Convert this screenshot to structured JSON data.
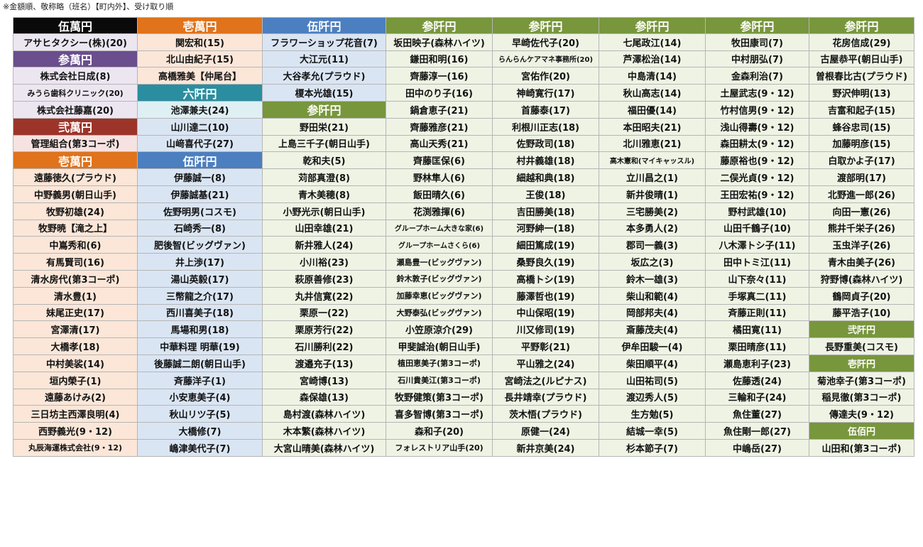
{
  "note": "※金額順、敬称略（班名）【町内外】、受け取り順",
  "colors": {
    "header": {
      "black": "#0a0a0a",
      "orange": "#e0731b",
      "blue": "#4c7fc0",
      "green": "#78963c",
      "purple": "#6a4e8d",
      "teal": "#2a8ea0",
      "darkred": "#9c3429"
    },
    "bg": {
      "peach": "#fbe6d8",
      "blue": "#dae5f3",
      "green": "#eef3e4",
      "lavender": "#ece6f1",
      "lightteal": "#dff0f4",
      "pink": "#f6e3e1",
      "white": "#ffffff"
    }
  },
  "columns": [
    {
      "cells": [
        {
          "t": "伍萬円",
          "h": "black"
        },
        {
          "t": "アサヒタクシー(株)(20)",
          "bg": "lavender"
        },
        {
          "t": "参萬円",
          "h": "purple"
        },
        {
          "t": "株式会社日成(8)",
          "bg": "lavender"
        },
        {
          "t": "みうら歯科クリニック(20)",
          "bg": "lavender",
          "fs": "sm"
        },
        {
          "t": "株式会社藤嘉(20)",
          "bg": "lavender"
        },
        {
          "t": "弐萬円",
          "h": "darkred"
        },
        {
          "t": "管理組合(第3コーポ)",
          "bg": "pink"
        },
        {
          "t": "壱萬円",
          "h": "orange"
        },
        {
          "t": "遠藤徳久(プラウド)",
          "bg": "peach"
        },
        {
          "t": "中野義男(朝日山手)",
          "bg": "peach"
        },
        {
          "t": "牧野初雄(24)",
          "bg": "peach"
        },
        {
          "t": "牧野暁【滝之上】",
          "bg": "peach"
        },
        {
          "t": "中嶌秀和(6)",
          "bg": "peach"
        },
        {
          "t": "有馬賢司(16)",
          "bg": "peach"
        },
        {
          "t": "清水房代(第3コーポ)",
          "bg": "peach"
        },
        {
          "t": "清水豊(1)",
          "bg": "peach"
        },
        {
          "t": "妹尾正史(17)",
          "bg": "peach"
        },
        {
          "t": "宮澤清(17)",
          "bg": "peach"
        },
        {
          "t": "大橋孝(18)",
          "bg": "peach"
        },
        {
          "t": "中村美裟(14)",
          "bg": "peach"
        },
        {
          "t": "垣内榮子(1)",
          "bg": "peach"
        },
        {
          "t": "遠藤あけみ(2)",
          "bg": "peach"
        },
        {
          "t": "三日坊主西澤良明(4)",
          "bg": "peach"
        },
        {
          "t": "西野義光(9・12)",
          "bg": "peach"
        },
        {
          "t": "丸辰海運株式会社(9・12)",
          "bg": "peach",
          "fs": "sm"
        }
      ]
    },
    {
      "cells": [
        {
          "t": "壱萬円",
          "h": "orange"
        },
        {
          "t": "関宏和(15)",
          "bg": "peach"
        },
        {
          "t": "北山由紀子(15)",
          "bg": "peach"
        },
        {
          "t": "高橋雅美【仲尾台】",
          "bg": "peach"
        },
        {
          "t": "六阡円",
          "h": "teal"
        },
        {
          "t": "池澤兼夫(24)",
          "bg": "lightteal"
        },
        {
          "t": "山川達二(10)",
          "bg": "blue"
        },
        {
          "t": "山﨑喜代子(27)",
          "bg": "blue"
        },
        {
          "t": "伍阡円",
          "h": "blue"
        },
        {
          "t": "伊藤誠一(8)",
          "bg": "blue"
        },
        {
          "t": "伊藤誠基(21)",
          "bg": "blue"
        },
        {
          "t": "佐野明男(コスモ)",
          "bg": "blue"
        },
        {
          "t": "石崎秀一(8)",
          "bg": "blue"
        },
        {
          "t": "肥後智(ビッグヴァン)",
          "bg": "blue"
        },
        {
          "t": "井上渉(17)",
          "bg": "blue"
        },
        {
          "t": "湯山英毅(17)",
          "bg": "blue"
        },
        {
          "t": "三幣龍之介(17)",
          "bg": "blue"
        },
        {
          "t": "西川喜美子(18)",
          "bg": "blue"
        },
        {
          "t": "馬場和男(18)",
          "bg": "blue"
        },
        {
          "t": "中華料理 明華(19)",
          "bg": "blue"
        },
        {
          "t": "後藤誠二朗(朝日山手)",
          "bg": "blue"
        },
        {
          "t": "斉藤洋子(1)",
          "bg": "blue"
        },
        {
          "t": "小安恵美子(4)",
          "bg": "blue"
        },
        {
          "t": "秋山リツ子(5)",
          "bg": "blue"
        },
        {
          "t": "大橋修(7)",
          "bg": "blue"
        },
        {
          "t": "嶋津美代子(7)",
          "bg": "blue"
        }
      ]
    },
    {
      "cells": [
        {
          "t": "伍阡円",
          "h": "blue"
        },
        {
          "t": "フラワーショップ花音(7)",
          "bg": "blue"
        },
        {
          "t": "大江元(11)",
          "bg": "blue"
        },
        {
          "t": "大谷孝允(プラウド)",
          "bg": "blue"
        },
        {
          "t": "榎本光雄(15)",
          "bg": "blue"
        },
        {
          "t": "参阡円",
          "h": "green"
        },
        {
          "t": "野田栄(21)",
          "bg": "green"
        },
        {
          "t": "上島三千子(朝日山手)",
          "bg": "green"
        },
        {
          "t": "乾和夫(5)",
          "bg": "green"
        },
        {
          "t": "苅部真澄(8)",
          "bg": "green"
        },
        {
          "t": "青木美穂(8)",
          "bg": "green"
        },
        {
          "t": "小野光示(朝日山手)",
          "bg": "green"
        },
        {
          "t": "山田幸雄(21)",
          "bg": "green"
        },
        {
          "t": "新井雅人(24)",
          "bg": "green"
        },
        {
          "t": "小川裕(23)",
          "bg": "green"
        },
        {
          "t": "萩原善修(23)",
          "bg": "green"
        },
        {
          "t": "丸井信寛(22)",
          "bg": "green"
        },
        {
          "t": "栗原一(22)",
          "bg": "green"
        },
        {
          "t": "栗原芳行(22)",
          "bg": "green"
        },
        {
          "t": "石川勝利(22)",
          "bg": "green"
        },
        {
          "t": "渡邉充子(13)",
          "bg": "green"
        },
        {
          "t": "宮崎博(13)",
          "bg": "green"
        },
        {
          "t": "森保雄(13)",
          "bg": "green"
        },
        {
          "t": "島村渡(森林ハイツ)",
          "bg": "green"
        },
        {
          "t": "木本繁(森林ハイツ)",
          "bg": "green"
        },
        {
          "t": "大宮山晴美(森林ハイツ)",
          "bg": "green"
        }
      ]
    },
    {
      "cells": [
        {
          "t": "参阡円",
          "h": "green"
        },
        {
          "t": "坂田映子(森林ハイツ)",
          "bg": "green"
        },
        {
          "t": "鎌田和明(16)",
          "bg": "green"
        },
        {
          "t": "齊藤淳一(16)",
          "bg": "green"
        },
        {
          "t": "田中のり子(16)",
          "bg": "green"
        },
        {
          "t": "鍋倉恵子(21)",
          "bg": "green"
        },
        {
          "t": "齊藤雅彦(21)",
          "bg": "green"
        },
        {
          "t": "高山天秀(21)",
          "bg": "green"
        },
        {
          "t": "齊藤匡保(6)",
          "bg": "green"
        },
        {
          "t": "野林隼人(6)",
          "bg": "green"
        },
        {
          "t": "飯田晴久(6)",
          "bg": "green"
        },
        {
          "t": "花渕雅揮(6)",
          "bg": "green"
        },
        {
          "t": "グループホーム大きな家(6)",
          "bg": "green",
          "fs": "xs"
        },
        {
          "t": "グループホームさくら(6)",
          "bg": "green",
          "fs": "xs"
        },
        {
          "t": "瀬島豊一(ビッグヴァン)",
          "bg": "green",
          "fs": "sm"
        },
        {
          "t": "鈴木敦子(ビッグヴァン)",
          "bg": "green",
          "fs": "sm"
        },
        {
          "t": "加藤幸恵(ビッグヴァン)",
          "bg": "green",
          "fs": "sm"
        },
        {
          "t": "大野泰弘(ビッグヴァン)",
          "bg": "green",
          "fs": "sm"
        },
        {
          "t": "小笠原涼介(29)",
          "bg": "green"
        },
        {
          "t": "甲斐誠治(朝日山手)",
          "bg": "green"
        },
        {
          "t": "植田恵美子(第3コーポ)",
          "bg": "green",
          "fs": "sm"
        },
        {
          "t": "石川貴美江(第3コーポ)",
          "bg": "green",
          "fs": "sm"
        },
        {
          "t": "牧野健策(第3コーポ)",
          "bg": "green"
        },
        {
          "t": "喜多智博(第3コーポ)",
          "bg": "green"
        },
        {
          "t": "森和子(20)",
          "bg": "green"
        },
        {
          "t": "フォレストリア山手(20)",
          "bg": "green",
          "fs": "sm"
        }
      ]
    },
    {
      "cells": [
        {
          "t": "参阡円",
          "h": "green"
        },
        {
          "t": "早崎佐代子(20)",
          "bg": "green"
        },
        {
          "t": "らんらんケアマネ事務所(20)",
          "bg": "green",
          "fs": "xs"
        },
        {
          "t": "宮佑作(20)",
          "bg": "green"
        },
        {
          "t": "神崎寛行(17)",
          "bg": "green"
        },
        {
          "t": "首藤泰(17)",
          "bg": "green"
        },
        {
          "t": "利根川正志(18)",
          "bg": "green"
        },
        {
          "t": "佐野政司(18)",
          "bg": "green"
        },
        {
          "t": "村井義雄(18)",
          "bg": "green"
        },
        {
          "t": "細越和典(18)",
          "bg": "green"
        },
        {
          "t": "王俊(18)",
          "bg": "green"
        },
        {
          "t": "吉田勝美(18)",
          "bg": "green"
        },
        {
          "t": "河野紳一(18)",
          "bg": "green"
        },
        {
          "t": "細田篤成(19)",
          "bg": "green"
        },
        {
          "t": "桑野良久(19)",
          "bg": "green"
        },
        {
          "t": "高橋トシ(19)",
          "bg": "green"
        },
        {
          "t": "藤澤哲也(19)",
          "bg": "green"
        },
        {
          "t": "中山保昭(19)",
          "bg": "green"
        },
        {
          "t": "川又修司(19)",
          "bg": "green"
        },
        {
          "t": "平野彰(21)",
          "bg": "green"
        },
        {
          "t": "平山雅之(24)",
          "bg": "green"
        },
        {
          "t": "宮崎法之(ルピナス)",
          "bg": "green"
        },
        {
          "t": "長井靖幸(プラウド)",
          "bg": "green"
        },
        {
          "t": "茨木悟(プラウド)",
          "bg": "green"
        },
        {
          "t": "原健一(24)",
          "bg": "green"
        },
        {
          "t": "新井京美(24)",
          "bg": "green"
        }
      ]
    },
    {
      "cells": [
        {
          "t": "参阡円",
          "h": "green"
        },
        {
          "t": "七尾政江(14)",
          "bg": "green"
        },
        {
          "t": "芦澤松治(14)",
          "bg": "green"
        },
        {
          "t": "中島清(14)",
          "bg": "green"
        },
        {
          "t": "秋山高志(14)",
          "bg": "green"
        },
        {
          "t": "福田優(14)",
          "bg": "green"
        },
        {
          "t": "本田昭夫(21)",
          "bg": "green"
        },
        {
          "t": "北川雅恵(21)",
          "bg": "green"
        },
        {
          "t": "高木憲和(マイキャッスル)",
          "bg": "green",
          "fs": "xs"
        },
        {
          "t": "立川昌之(1)",
          "bg": "green"
        },
        {
          "t": "新井俊晴(1)",
          "bg": "green"
        },
        {
          "t": "三宅勝美(2)",
          "bg": "green"
        },
        {
          "t": "本多勇人(2)",
          "bg": "green"
        },
        {
          "t": "郡司一義(3)",
          "bg": "green"
        },
        {
          "t": "坂広之(3)",
          "bg": "green"
        },
        {
          "t": "鈴木一雄(3)",
          "bg": "green"
        },
        {
          "t": "柴山和範(4)",
          "bg": "green"
        },
        {
          "t": "岡部邦夫(4)",
          "bg": "green"
        },
        {
          "t": "斎藤茂夫(4)",
          "bg": "green"
        },
        {
          "t": "伊牟田駿一(4)",
          "bg": "green"
        },
        {
          "t": "柴田順平(4)",
          "bg": "green"
        },
        {
          "t": "山田祐司(5)",
          "bg": "green"
        },
        {
          "t": "渡辺秀人(5)",
          "bg": "green"
        },
        {
          "t": "生方勉(5)",
          "bg": "green"
        },
        {
          "t": "結城一幸(5)",
          "bg": "green"
        },
        {
          "t": "杉本節子(7)",
          "bg": "green"
        }
      ]
    },
    {
      "cells": [
        {
          "t": "参阡円",
          "h": "green"
        },
        {
          "t": "牧田康司(7)",
          "bg": "green"
        },
        {
          "t": "中村朋弘(7)",
          "bg": "green"
        },
        {
          "t": "金森利治(7)",
          "bg": "green"
        },
        {
          "t": "土屋武志(9・12)",
          "bg": "green"
        },
        {
          "t": "竹村信男(9・12)",
          "bg": "green"
        },
        {
          "t": "浅山得壽(9・12)",
          "bg": "green"
        },
        {
          "t": "森田耕太(9・12)",
          "bg": "green"
        },
        {
          "t": "藤原裕也(9・12)",
          "bg": "green"
        },
        {
          "t": "二俣光貞(9・12)",
          "bg": "green"
        },
        {
          "t": "王田宏祐(9・12)",
          "bg": "green"
        },
        {
          "t": "野村武雄(10)",
          "bg": "green"
        },
        {
          "t": "山田千鶴子(10)",
          "bg": "green"
        },
        {
          "t": "八木澤トシ子(11)",
          "bg": "green"
        },
        {
          "t": "田中トミ江(11)",
          "bg": "green"
        },
        {
          "t": "山下奈々(11)",
          "bg": "green"
        },
        {
          "t": "手塚真二(11)",
          "bg": "green"
        },
        {
          "t": "斉藤正則(11)",
          "bg": "green"
        },
        {
          "t": "橘田寛(11)",
          "bg": "green"
        },
        {
          "t": "栗田晴彦(11)",
          "bg": "green"
        },
        {
          "t": "瀬島恵利子(23)",
          "bg": "green"
        },
        {
          "t": "佐藤透(24)",
          "bg": "green"
        },
        {
          "t": "三輪和子(24)",
          "bg": "green"
        },
        {
          "t": "魚住董(27)",
          "bg": "green"
        },
        {
          "t": "魚住剛一郎(27)",
          "bg": "green"
        },
        {
          "t": "中嶋岳(27)",
          "bg": "green"
        }
      ]
    },
    {
      "cells": [
        {
          "t": "参阡円",
          "h": "green"
        },
        {
          "t": "花房信成(29)",
          "bg": "green"
        },
        {
          "t": "古屋恭平(朝日山手)",
          "bg": "green"
        },
        {
          "t": "曽根春比古(プラウド)",
          "bg": "green"
        },
        {
          "t": "野沢伸明(13)",
          "bg": "green"
        },
        {
          "t": "吉富和起子(15)",
          "bg": "green"
        },
        {
          "t": "蜂谷忠司(15)",
          "bg": "green"
        },
        {
          "t": "加藤明彦(15)",
          "bg": "green"
        },
        {
          "t": "白取かよ子(17)",
          "bg": "green"
        },
        {
          "t": "渡部明(17)",
          "bg": "green"
        },
        {
          "t": "北野進一郎(26)",
          "bg": "green"
        },
        {
          "t": "向田一憲(26)",
          "bg": "green"
        },
        {
          "t": "熊井千栄子(26)",
          "bg": "green"
        },
        {
          "t": "玉虫洋子(26)",
          "bg": "green"
        },
        {
          "t": "青木由美子(26)",
          "bg": "green"
        },
        {
          "t": "狩野博(森林ハイツ)",
          "bg": "green"
        },
        {
          "t": "鶴岡貞子(20)",
          "bg": "green"
        },
        {
          "t": "藤平浩子(10)",
          "bg": "green"
        },
        {
          "t": "弐阡円",
          "h": "green",
          "fs": "mid"
        },
        {
          "t": "長野重美(コスモ)",
          "bg": "green"
        },
        {
          "t": "壱阡円",
          "h": "green",
          "fs": "mid"
        },
        {
          "t": "菊池幸子(第3コーポ)",
          "bg": "green"
        },
        {
          "t": "稲見徹(第3コーポ)",
          "bg": "green"
        },
        {
          "t": "傳達夫(9・12)",
          "bg": "green"
        },
        {
          "t": "伍佰円",
          "h": "green",
          "fs": "mid"
        },
        {
          "t": "山田和(第3コーポ)",
          "bg": "green"
        }
      ]
    }
  ]
}
